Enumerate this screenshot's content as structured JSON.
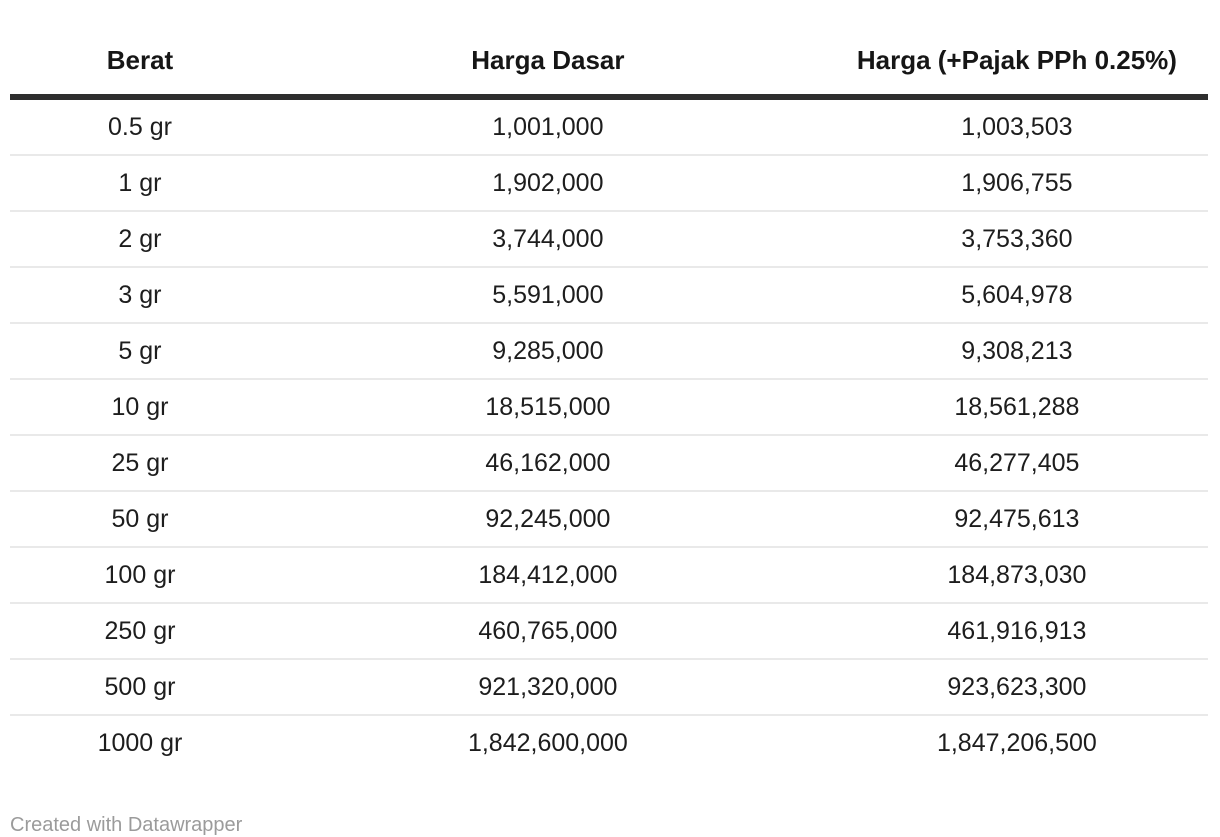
{
  "chart_data": {
    "type": "table",
    "columns": [
      "Berat",
      "Harga Dasar",
      "Harga (+Pajak PPh 0.25%)"
    ],
    "rows": [
      [
        "0.5 gr",
        "1,001,000",
        "1,003,503"
      ],
      [
        "1 gr",
        "1,902,000",
        "1,906,755"
      ],
      [
        "2 gr",
        "3,744,000",
        "3,753,360"
      ],
      [
        "3 gr",
        "5,591,000",
        "5,604,978"
      ],
      [
        "5 gr",
        "9,285,000",
        "9,308,213"
      ],
      [
        "10 gr",
        "18,515,000",
        "18,561,288"
      ],
      [
        "25 gr",
        "46,162,000",
        "46,277,405"
      ],
      [
        "50 gr",
        "92,245,000",
        "92,475,613"
      ],
      [
        "100 gr",
        "184,412,000",
        "184,873,030"
      ],
      [
        "250 gr",
        "460,765,000",
        "461,916,913"
      ],
      [
        "500 gr",
        "921,320,000",
        "923,623,300"
      ],
      [
        "1000 gr",
        "1,842,600,000",
        "1,847,206,500"
      ]
    ],
    "numeric_rows": [
      {
        "berat_gr": 0.5,
        "harga_dasar": 1001000,
        "harga_pajak": 1003503
      },
      {
        "berat_gr": 1,
        "harga_dasar": 1902000,
        "harga_pajak": 1906755
      },
      {
        "berat_gr": 2,
        "harga_dasar": 3744000,
        "harga_pajak": 3753360
      },
      {
        "berat_gr": 3,
        "harga_dasar": 5591000,
        "harga_pajak": 5604978
      },
      {
        "berat_gr": 5,
        "harga_dasar": 9285000,
        "harga_pajak": 9308213
      },
      {
        "berat_gr": 10,
        "harga_dasar": 18515000,
        "harga_pajak": 18561288
      },
      {
        "berat_gr": 25,
        "harga_dasar": 46162000,
        "harga_pajak": 46277405
      },
      {
        "berat_gr": 50,
        "harga_dasar": 92245000,
        "harga_pajak": 92475613
      },
      {
        "berat_gr": 100,
        "harga_dasar": 184412000,
        "harga_pajak": 184873030
      },
      {
        "berat_gr": 250,
        "harga_dasar": 460765000,
        "harga_pajak": 461916913
      },
      {
        "berat_gr": 500,
        "harga_dasar": 921320000,
        "harga_pajak": 923623300
      },
      {
        "berat_gr": 1000,
        "harga_dasar": 1842600000,
        "harga_pajak": 1847206500
      }
    ],
    "title": "",
    "layout_hints": {
      "alignment": "center",
      "header_rule": true,
      "row_dividers": true
    }
  },
  "footer": {
    "credit_label": "Created with Datawrapper"
  },
  "colors": {
    "background": "#ffffff",
    "header_text": "#161616",
    "body_text": "#1d1d1d",
    "header_rule": "#2e2e2e",
    "row_divider": "#e9e9e9",
    "credit_text": "#9b9b9b"
  }
}
